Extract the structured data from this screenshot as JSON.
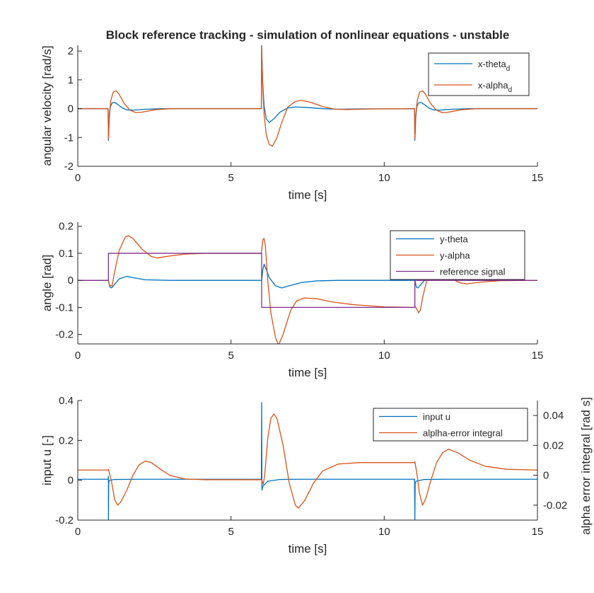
{
  "figure_title": "Block reference tracking - simulation of nonlinear equations - unstable",
  "colors": {
    "blue": "#0072BD",
    "orange": "#D95319",
    "purple": "#7E2F8E",
    "axis": "#262626"
  },
  "chart_data": [
    {
      "type": "line",
      "xlabel": "time [s]",
      "ylabel": "angular velocity [rad/s]",
      "xlim": [
        0,
        15
      ],
      "ylim": [
        -2,
        2.2
      ],
      "xticks": [
        0,
        5,
        10,
        15
      ],
      "yticks": [
        -2,
        -1,
        0,
        1,
        2
      ],
      "grid": false,
      "legend_position": "top-right",
      "series": [
        {
          "name": "x-theta",
          "subscript": "d",
          "color": "#0072BD",
          "points": [
            [
              0,
              0
            ],
            [
              0.99,
              0
            ],
            [
              1.0,
              -1.1
            ],
            [
              1.03,
              -0.3
            ],
            [
              1.06,
              0.05
            ],
            [
              1.12,
              0.2
            ],
            [
              1.2,
              0.22
            ],
            [
              1.3,
              0.15
            ],
            [
              1.45,
              0.03
            ],
            [
              1.6,
              -0.04
            ],
            [
              1.8,
              -0.05
            ],
            [
              2.2,
              -0.02
            ],
            [
              2.8,
              0
            ],
            [
              5.99,
              0
            ],
            [
              6.0,
              2.2
            ],
            [
              6.03,
              1.0
            ],
            [
              6.08,
              0.1
            ],
            [
              6.15,
              -0.35
            ],
            [
              6.25,
              -0.48
            ],
            [
              6.4,
              -0.35
            ],
            [
              6.6,
              -0.12
            ],
            [
              6.85,
              0.02
            ],
            [
              7.1,
              0.06
            ],
            [
              7.5,
              0.04
            ],
            [
              8.0,
              0
            ],
            [
              8.5,
              -0.02
            ],
            [
              9.0,
              -0.01
            ],
            [
              10.99,
              0
            ],
            [
              11.0,
              -1.1
            ],
            [
              11.03,
              -0.3
            ],
            [
              11.06,
              0.05
            ],
            [
              11.12,
              0.2
            ],
            [
              11.2,
              0.22
            ],
            [
              11.3,
              0.15
            ],
            [
              11.45,
              0.03
            ],
            [
              11.6,
              -0.04
            ],
            [
              11.8,
              -0.05
            ],
            [
              12.2,
              -0.02
            ],
            [
              12.8,
              0
            ],
            [
              15,
              0
            ]
          ]
        },
        {
          "name": "x-alpha",
          "subscript": "d",
          "color": "#D95319",
          "points": [
            [
              0,
              0
            ],
            [
              0.99,
              0
            ],
            [
              1.0,
              -1.05
            ],
            [
              1.03,
              -0.2
            ],
            [
              1.08,
              0.3
            ],
            [
              1.16,
              0.58
            ],
            [
              1.25,
              0.62
            ],
            [
              1.35,
              0.5
            ],
            [
              1.5,
              0.2
            ],
            [
              1.7,
              -0.05
            ],
            [
              1.9,
              -0.14
            ],
            [
              2.1,
              -0.12
            ],
            [
              2.5,
              -0.04
            ],
            [
              3.0,
              0
            ],
            [
              5.99,
              0
            ],
            [
              6.0,
              2.15
            ],
            [
              6.03,
              0.9
            ],
            [
              6.08,
              -0.2
            ],
            [
              6.15,
              -0.9
            ],
            [
              6.25,
              -1.25
            ],
            [
              6.35,
              -1.3
            ],
            [
              6.5,
              -1.0
            ],
            [
              6.65,
              -0.5
            ],
            [
              6.85,
              0.05
            ],
            [
              7.1,
              0.25
            ],
            [
              7.3,
              0.29
            ],
            [
              7.6,
              0.22
            ],
            [
              8.0,
              0.07
            ],
            [
              8.4,
              -0.02
            ],
            [
              8.8,
              -0.03
            ],
            [
              9.5,
              -0.01
            ],
            [
              10.99,
              0
            ],
            [
              11.0,
              -1.05
            ],
            [
              11.03,
              -0.2
            ],
            [
              11.08,
              0.3
            ],
            [
              11.16,
              0.58
            ],
            [
              11.25,
              0.62
            ],
            [
              11.35,
              0.5
            ],
            [
              11.5,
              0.2
            ],
            [
              11.7,
              -0.05
            ],
            [
              11.9,
              -0.14
            ],
            [
              12.1,
              -0.12
            ],
            [
              12.5,
              -0.04
            ],
            [
              13.0,
              0
            ],
            [
              15,
              0
            ]
          ]
        }
      ]
    },
    {
      "type": "line",
      "xlabel": "time [s]",
      "ylabel": "angle [rad]",
      "xlim": [
        0,
        15
      ],
      "ylim": [
        -0.235,
        0.215
      ],
      "xticks": [
        0,
        5,
        10,
        15
      ],
      "yticks": [
        -0.2,
        -0.1,
        0,
        0.1,
        0.2
      ],
      "grid": false,
      "legend_position": "top-right",
      "series": [
        {
          "name": "y-theta",
          "color": "#0072BD",
          "points": [
            [
              0,
              0
            ],
            [
              1.0,
              0
            ],
            [
              1.05,
              -0.025
            ],
            [
              1.1,
              -0.028
            ],
            [
              1.2,
              -0.015
            ],
            [
              1.35,
              0.005
            ],
            [
              1.6,
              0.015
            ],
            [
              1.8,
              0.01
            ],
            [
              2.2,
              0.002
            ],
            [
              3.0,
              0
            ],
            [
              6.0,
              0
            ],
            [
              6.04,
              0.04
            ],
            [
              6.08,
              0.06
            ],
            [
              6.15,
              0.04
            ],
            [
              6.25,
              0.01
            ],
            [
              6.45,
              -0.02
            ],
            [
              6.65,
              -0.028
            ],
            [
              6.9,
              -0.02
            ],
            [
              7.3,
              -0.008
            ],
            [
              7.8,
              -0.002
            ],
            [
              8.5,
              0
            ],
            [
              11.0,
              0
            ],
            [
              11.05,
              -0.025
            ],
            [
              11.1,
              -0.028
            ],
            [
              11.2,
              -0.015
            ],
            [
              11.35,
              0.005
            ],
            [
              11.6,
              0.015
            ],
            [
              11.8,
              0.01
            ],
            [
              12.2,
              0.002
            ],
            [
              13.0,
              0
            ],
            [
              15,
              0
            ]
          ]
        },
        {
          "name": "y-alpha",
          "color": "#D95319",
          "points": [
            [
              0,
              0
            ],
            [
              1.0,
              0
            ],
            [
              1.05,
              -0.02
            ],
            [
              1.12,
              -0.02
            ],
            [
              1.2,
              0.03
            ],
            [
              1.35,
              0.11
            ],
            [
              1.55,
              0.16
            ],
            [
              1.65,
              0.165
            ],
            [
              1.8,
              0.155
            ],
            [
              2.1,
              0.115
            ],
            [
              2.4,
              0.088
            ],
            [
              2.6,
              0.083
            ],
            [
              3.0,
              0.09
            ],
            [
              3.5,
              0.097
            ],
            [
              4.2,
              0.1
            ],
            [
              5.99,
              0.1
            ],
            [
              6.0,
              0.11
            ],
            [
              6.04,
              0.15
            ],
            [
              6.08,
              0.155
            ],
            [
              6.12,
              0.13
            ],
            [
              6.2,
              0.0
            ],
            [
              6.3,
              -0.12
            ],
            [
              6.45,
              -0.21
            ],
            [
              6.55,
              -0.24
            ],
            [
              6.7,
              -0.2
            ],
            [
              6.95,
              -0.11
            ],
            [
              7.15,
              -0.075
            ],
            [
              7.4,
              -0.065
            ],
            [
              7.8,
              -0.068
            ],
            [
              8.3,
              -0.08
            ],
            [
              9.0,
              -0.09
            ],
            [
              10.0,
              -0.098
            ],
            [
              10.99,
              -0.1
            ],
            [
              11.0,
              -0.095
            ],
            [
              11.06,
              -0.105
            ],
            [
              11.12,
              -0.12
            ],
            [
              11.18,
              -0.11
            ],
            [
              11.25,
              -0.065
            ],
            [
              11.4,
              0.005
            ],
            [
              11.6,
              0.03
            ],
            [
              11.8,
              0.028
            ],
            [
              12.2,
              0.005
            ],
            [
              12.5,
              -0.01
            ],
            [
              12.7,
              -0.013
            ],
            [
              13.2,
              -0.006
            ],
            [
              13.8,
              -0.001
            ],
            [
              15,
              0
            ]
          ]
        },
        {
          "name": "reference signal",
          "color": "#7E2F8E",
          "points": [
            [
              0,
              0
            ],
            [
              1.0,
              0
            ],
            [
              1.0,
              0.1
            ],
            [
              6.0,
              0.1
            ],
            [
              6.0,
              -0.1
            ],
            [
              11.0,
              -0.1
            ],
            [
              11.0,
              0
            ],
            [
              15,
              0
            ]
          ]
        }
      ]
    },
    {
      "type": "line",
      "xlabel": "time [s]",
      "ylabel": "input u [-]",
      "ylabel_right": "alpha error integral [rad s]",
      "xlim": [
        0,
        15
      ],
      "ylim": [
        -0.2,
        0.4
      ],
      "ylim_right": [
        -0.03,
        0.05
      ],
      "xticks": [
        0,
        5,
        10,
        15
      ],
      "yticks": [
        -0.2,
        0,
        0.2,
        0.4
      ],
      "yticks_right": [
        -0.02,
        0,
        0.02,
        0.04
      ],
      "grid": false,
      "legend_position": "top-right",
      "series": [
        {
          "name": "input u",
          "axis": "left",
          "color": "#0072BD",
          "points": [
            [
              0,
              0.005
            ],
            [
              0.99,
              0.005
            ],
            [
              1.0,
              0.02
            ],
            [
              1.0,
              -0.2
            ],
            [
              1.01,
              -0.01
            ],
            [
              1.04,
              0.0
            ],
            [
              1.2,
              0.004
            ],
            [
              2.0,
              0.005
            ],
            [
              5.99,
              0.005
            ],
            [
              6.0,
              0.39
            ],
            [
              6.01,
              -0.05
            ],
            [
              6.04,
              -0.03
            ],
            [
              6.2,
              -0.005
            ],
            [
              6.6,
              0.004
            ],
            [
              7.2,
              0.005
            ],
            [
              10.99,
              0.005
            ],
            [
              11.0,
              -0.2
            ],
            [
              11.01,
              -0.015
            ],
            [
              11.04,
              -0.005
            ],
            [
              11.3,
              0.004
            ],
            [
              12.0,
              0.005
            ],
            [
              15,
              0.005
            ]
          ]
        },
        {
          "name": "alplha-error integral",
          "axis": "right",
          "color": "#D95319",
          "points": [
            [
              0,
              0.0035
            ],
            [
              0.99,
              0.0035
            ],
            [
              1.0,
              0.004
            ],
            [
              1.1,
              -0.004
            ],
            [
              1.2,
              -0.016
            ],
            [
              1.3,
              -0.02
            ],
            [
              1.4,
              -0.018
            ],
            [
              1.6,
              -0.01
            ],
            [
              1.8,
              0.0
            ],
            [
              2.0,
              0.007
            ],
            [
              2.2,
              0.0095
            ],
            [
              2.4,
              0.0085
            ],
            [
              2.7,
              0.004
            ],
            [
              3.0,
              0.0
            ],
            [
              3.5,
              -0.0025
            ],
            [
              4.2,
              -0.003
            ],
            [
              5.99,
              -0.003
            ],
            [
              6.0,
              -0.003
            ],
            [
              6.05,
              -0.006
            ],
            [
              6.1,
              0.0
            ],
            [
              6.2,
              0.025
            ],
            [
              6.3,
              0.038
            ],
            [
              6.4,
              0.041
            ],
            [
              6.5,
              0.038
            ],
            [
              6.7,
              0.02
            ],
            [
              6.9,
              -0.005
            ],
            [
              7.1,
              -0.02
            ],
            [
              7.2,
              -0.022
            ],
            [
              7.4,
              -0.017
            ],
            [
              7.7,
              -0.005
            ],
            [
              8.0,
              0.003
            ],
            [
              8.5,
              0.0075
            ],
            [
              9.2,
              0.0085
            ],
            [
              10.99,
              0.0085
            ],
            [
              11.0,
              0.009
            ],
            [
              11.06,
              0.002
            ],
            [
              11.15,
              -0.012
            ],
            [
              11.25,
              -0.02
            ],
            [
              11.35,
              -0.016
            ],
            [
              11.5,
              -0.005
            ],
            [
              11.7,
              0.008
            ],
            [
              11.9,
              0.015
            ],
            [
              12.1,
              0.0175
            ],
            [
              12.4,
              0.015
            ],
            [
              12.8,
              0.01
            ],
            [
              13.3,
              0.006
            ],
            [
              14.0,
              0.004
            ],
            [
              15,
              0.0035
            ]
          ]
        }
      ]
    }
  ]
}
